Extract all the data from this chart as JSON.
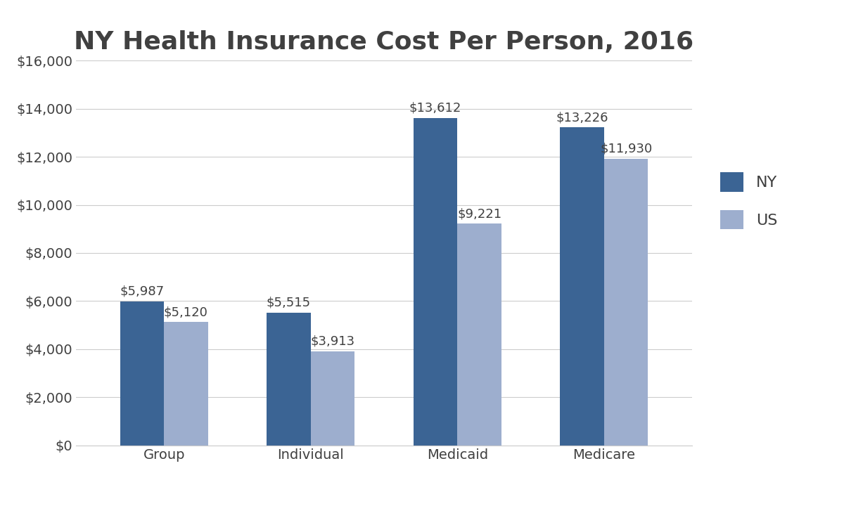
{
  "title": "NY Health Insurance Cost Per Person, 2016",
  "categories": [
    "Group",
    "Individual",
    "Medicaid",
    "Medicare"
  ],
  "ny_values": [
    5987,
    5515,
    13612,
    13226
  ],
  "us_values": [
    5120,
    3913,
    9221,
    11930
  ],
  "ny_color": "#3B6494",
  "us_color": "#9DAECE",
  "ylim": [
    0,
    16000
  ],
  "yticks": [
    0,
    2000,
    4000,
    6000,
    8000,
    10000,
    12000,
    14000,
    16000
  ],
  "bar_width": 0.3,
  "title_fontsize": 26,
  "tick_fontsize": 14,
  "legend_fontsize": 16,
  "annotation_fontsize": 13,
  "background_color": "#ffffff",
  "legend_labels": [
    "NY",
    "US"
  ],
  "grid_color": "#cccccc",
  "text_color": "#404040"
}
